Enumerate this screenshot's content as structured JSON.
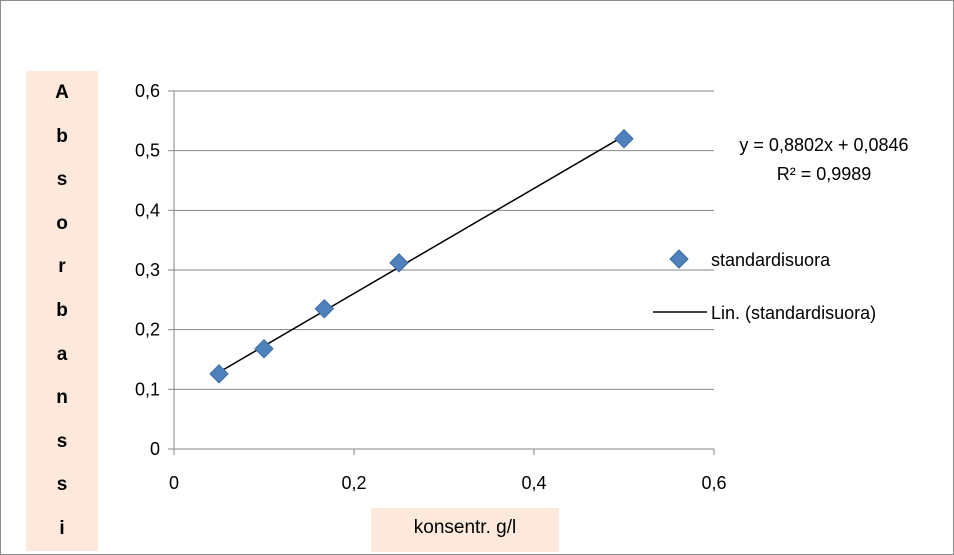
{
  "chart_data": {
    "type": "scatter",
    "title": "",
    "xlabel": "konsentr. g/l",
    "ylabel": "Absorbanssi",
    "xlim": [
      0,
      0.6
    ],
    "ylim": [
      0,
      0.6
    ],
    "x_ticks": [
      "0",
      "0,2",
      "0,4",
      "0,6"
    ],
    "y_ticks": [
      "0",
      "0,1",
      "0,2",
      "0,3",
      "0,4",
      "0,5",
      "0,6"
    ],
    "grid": "horizontal",
    "legend_position": "right",
    "series": [
      {
        "name": "standardisuora",
        "marker": "diamond",
        "color": "#4f81bd",
        "x": [
          0.05,
          0.1,
          0.167,
          0.25,
          0.5
        ],
        "y": [
          0.126,
          0.168,
          0.235,
          0.312,
          0.52
        ]
      }
    ],
    "trendline": {
      "name": "Lin. (standardisuora)",
      "slope": 0.8802,
      "intercept": 0.0846,
      "x_range": [
        0.05,
        0.5
      ],
      "color": "#000000",
      "equation": "y = 0,8802x + 0,0846",
      "r_squared": "R² = 0,9989"
    }
  }
}
